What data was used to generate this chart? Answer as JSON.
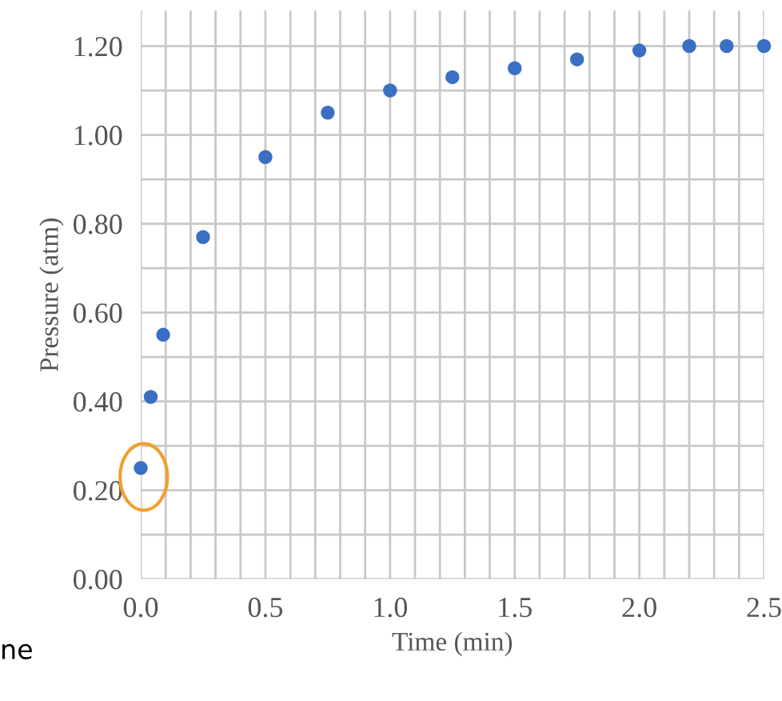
{
  "chart_data": {
    "type": "scatter",
    "xlabel": "Time (min)",
    "ylabel": "Pressure (atm)",
    "x": [
      0,
      0.04,
      0.09,
      0.25,
      0.5,
      0.75,
      1.0,
      1.25,
      1.5,
      1.75,
      2.0,
      2.2,
      2.35,
      2.5
    ],
    "series": [
      {
        "color": "#3a6fc4",
        "values": [
          0.25,
          0.41,
          0.55,
          0.77,
          0.95,
          1.05,
          1.1,
          1.13,
          1.15,
          1.17,
          1.19,
          1.2,
          1.2,
          1.2
        ]
      }
    ],
    "marker": "circle",
    "xlim": [
      0,
      2.5
    ],
    "ylim": [
      0,
      1.28
    ],
    "xticks": [
      {
        "value": 0,
        "label": "0.0"
      },
      {
        "value": 0.1,
        "label": null
      },
      {
        "value": 0.2,
        "label": null
      },
      {
        "value": 0.3,
        "label": null
      },
      {
        "value": 0.4,
        "label": null
      },
      {
        "value": 0.5,
        "label": "0.5"
      },
      {
        "value": 0.6,
        "label": null
      },
      {
        "value": 0.7,
        "label": null
      },
      {
        "value": 0.8,
        "label": null
      },
      {
        "value": 0.9,
        "label": null
      },
      {
        "value": 1.0,
        "label": "1.0"
      },
      {
        "value": 1.1,
        "label": null
      },
      {
        "value": 1.2,
        "label": null
      },
      {
        "value": 1.3,
        "label": null
      },
      {
        "value": 1.4,
        "label": null
      },
      {
        "value": 1.5,
        "label": "1.5"
      },
      {
        "value": 1.6,
        "label": null
      },
      {
        "value": 1.7,
        "label": null
      },
      {
        "value": 1.8,
        "label": null
      },
      {
        "value": 1.9,
        "label": null
      },
      {
        "value": 2.0,
        "label": "2.0"
      },
      {
        "value": 2.1,
        "label": null
      },
      {
        "value": 2.2,
        "label": null
      },
      {
        "value": 2.3,
        "label": null
      },
      {
        "value": 2.4,
        "label": null
      },
      {
        "value": 2.5,
        "label": "2.5"
      }
    ],
    "yticks": [
      {
        "value": 0,
        "label": "0.00"
      },
      {
        "value": 0.1,
        "label": null
      },
      {
        "value": 0.2,
        "label": "0.20"
      },
      {
        "value": 0.3,
        "label": null
      },
      {
        "value": 0.4,
        "label": "0.40"
      },
      {
        "value": 0.5,
        "label": null
      },
      {
        "value": 0.6,
        "label": "0.60"
      },
      {
        "value": 0.7,
        "label": null
      },
      {
        "value": 0.8,
        "label": "0.80"
      },
      {
        "value": 0.9,
        "label": null
      },
      {
        "value": 1.0,
        "label": "1.00"
      },
      {
        "value": 1.1,
        "label": null
      },
      {
        "value": 1.2,
        "label": "1.20"
      }
    ],
    "grid": true,
    "annotations": [
      "ne"
    ]
  }
}
